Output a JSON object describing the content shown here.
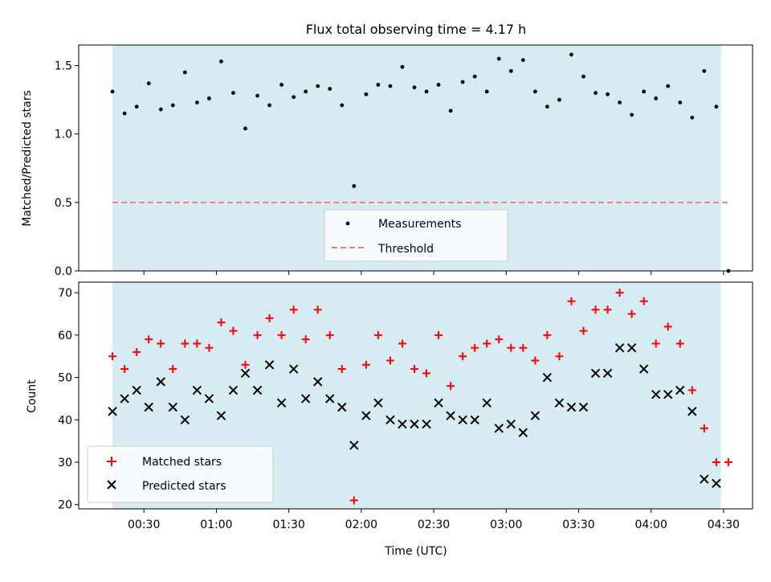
{
  "figure": {
    "title": "Flux total observing time = 4.17 h",
    "xlabel": "Time (UTC)"
  },
  "colors": {
    "shade": "#add8e6",
    "threshold": "#f08080",
    "matched": "#ff0000",
    "predicted": "#000000",
    "measurement": "#000000"
  },
  "chart_data": [
    {
      "type": "scatter",
      "ylabel": "Matched/Predicted stars",
      "ylim": [
        0,
        1.65
      ],
      "yticks": [
        "0.0",
        "0.5",
        "1.0",
        "1.5"
      ],
      "threshold": 0.5,
      "shaded_range": [
        "00:17",
        "04:29"
      ],
      "legend_location": "lower-center",
      "legend": [
        "Measurements",
        "Threshold"
      ],
      "x": [
        "00:17",
        "00:22",
        "00:27",
        "00:32",
        "00:37",
        "00:42",
        "00:47",
        "00:52",
        "00:57",
        "01:02",
        "01:07",
        "01:12",
        "01:17",
        "01:22",
        "01:27",
        "01:32",
        "01:37",
        "01:42",
        "01:47",
        "01:52",
        "01:57",
        "02:02",
        "02:07",
        "02:12",
        "02:17",
        "02:22",
        "02:27",
        "02:32",
        "02:37",
        "02:42",
        "02:47",
        "02:52",
        "02:57",
        "03:02",
        "03:07",
        "03:12",
        "03:17",
        "03:22",
        "03:27",
        "03:32",
        "03:37",
        "03:42",
        "03:47",
        "03:52",
        "03:57",
        "04:02",
        "04:07",
        "04:12",
        "04:17",
        "04:22",
        "04:27",
        "04:32"
      ],
      "y": [
        1.31,
        1.15,
        1.2,
        1.37,
        1.18,
        1.21,
        1.45,
        1.23,
        1.26,
        1.53,
        1.3,
        1.04,
        1.28,
        1.21,
        1.36,
        1.27,
        1.31,
        1.35,
        1.33,
        1.21,
        0.62,
        1.29,
        1.36,
        1.35,
        1.49,
        1.34,
        1.31,
        1.36,
        1.17,
        1.38,
        1.42,
        1.31,
        1.55,
        1.46,
        1.54,
        1.31,
        1.2,
        1.25,
        1.58,
        1.42,
        1.3,
        1.29,
        1.23,
        1.14,
        1.31,
        1.26,
        1.35,
        1.23,
        1.12,
        1.46,
        1.2,
        0.0
      ]
    },
    {
      "type": "scatter",
      "ylabel": "Count",
      "ylim": [
        19,
        72.5
      ],
      "yticks": [
        "20",
        "30",
        "40",
        "50",
        "60",
        "70"
      ],
      "legend_location": "lower-left",
      "x": [
        "00:17",
        "00:22",
        "00:27",
        "00:32",
        "00:37",
        "00:42",
        "00:47",
        "00:52",
        "00:57",
        "01:02",
        "01:07",
        "01:12",
        "01:17",
        "01:22",
        "01:27",
        "01:32",
        "01:37",
        "01:42",
        "01:47",
        "01:52",
        "01:57",
        "02:02",
        "02:07",
        "02:12",
        "02:17",
        "02:22",
        "02:27",
        "02:32",
        "02:37",
        "02:42",
        "02:47",
        "02:52",
        "02:57",
        "03:02",
        "03:07",
        "03:12",
        "03:17",
        "03:22",
        "03:27",
        "03:32",
        "03:37",
        "03:42",
        "03:47",
        "03:52",
        "03:57",
        "04:02",
        "04:07",
        "04:12",
        "04:17",
        "04:22",
        "04:27",
        "04:32"
      ],
      "xticks": [
        "00:30",
        "01:00",
        "01:30",
        "02:00",
        "02:30",
        "03:00",
        "03:30",
        "04:00",
        "04:30"
      ],
      "series": [
        {
          "name": "Matched stars",
          "marker": "+",
          "values": [
            55,
            52,
            56,
            59,
            58,
            52,
            58,
            58,
            57,
            63,
            61,
            53,
            60,
            64,
            60,
            66,
            59,
            66,
            60,
            52,
            21,
            53,
            60,
            54,
            58,
            52,
            51,
            60,
            48,
            55,
            57,
            58,
            59,
            57,
            57,
            54,
            60,
            55,
            68,
            61,
            66,
            66,
            70,
            65,
            68,
            58,
            62,
            58,
            47,
            38,
            30,
            30
          ]
        },
        {
          "name": "Predicted stars",
          "marker": "x",
          "values": [
            42,
            45,
            47,
            43,
            49,
            43,
            40,
            47,
            45,
            41,
            47,
            51,
            47,
            53,
            44,
            52,
            45,
            49,
            45,
            43,
            34,
            41,
            44,
            40,
            39,
            39,
            39,
            44,
            41,
            40,
            40,
            44,
            38,
            39,
            37,
            41,
            50,
            44,
            43,
            43,
            51,
            51,
            57,
            57,
            52,
            46,
            46,
            47,
            42,
            26,
            25,
            null
          ]
        }
      ]
    }
  ]
}
